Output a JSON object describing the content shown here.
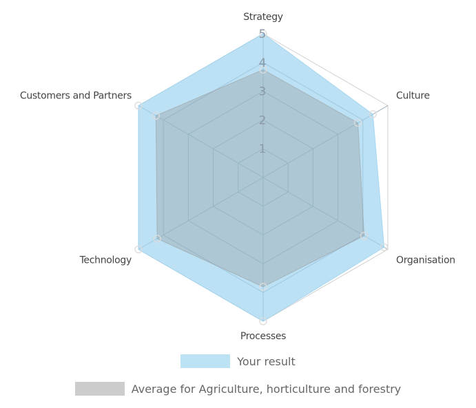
{
  "chart_data": {
    "type": "radar",
    "axes": [
      "Strategy",
      "Culture",
      "Organisation",
      "Processes",
      "Technology",
      "Customers and Partners"
    ],
    "scale": {
      "min": 0,
      "max": 5,
      "ticks": [
        "1",
        "2",
        "3",
        "4",
        "5"
      ]
    },
    "grid": true,
    "legend_placement": "bottom",
    "series": [
      {
        "name": "Your result",
        "values": [
          5,
          4.4,
          4.85,
          5,
          5,
          5
        ],
        "color": "#a9d8f2"
      },
      {
        "name": "Average for Agriculture, horticulture and forestry",
        "values": [
          3.75,
          3.8,
          4.05,
          3.8,
          4.25,
          4.3
        ],
        "color": "#b0b0b0"
      }
    ]
  }
}
